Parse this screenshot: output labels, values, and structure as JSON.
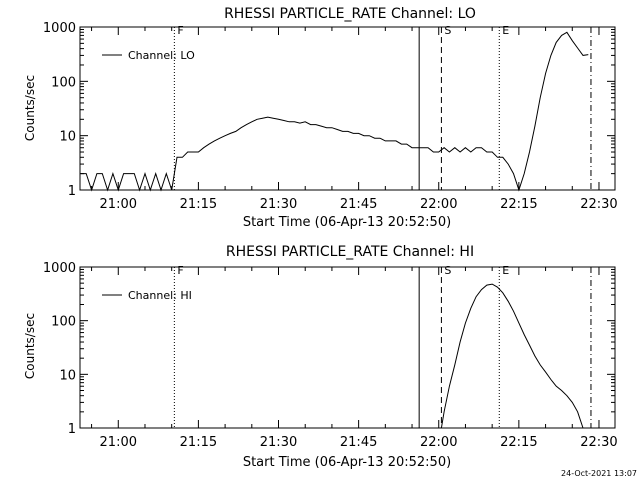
{
  "footer": {
    "timestamp": "24-Oct-2021 13:07"
  },
  "chart_data": [
    {
      "type": "line",
      "title": "RHESSI PARTICLE_RATE Channel: LO",
      "xlabel": "Start Time (06-Apr-13 20:52:50)",
      "ylabel": "Counts/sec",
      "x_unit": "time of day (hh:mm)",
      "xlim": [
        "20:52:50",
        "22:33"
      ],
      "ylim": [
        1,
        1000
      ],
      "yscale": "log",
      "xticks": [
        "21:00",
        "21:15",
        "21:30",
        "21:45",
        "22:00",
        "22:15",
        "22:30"
      ],
      "yticks": [
        "1",
        "10",
        "100",
        "1000"
      ],
      "legend": {
        "position": "top-left",
        "entries": [
          "Channel: LO"
        ]
      },
      "grid": false,
      "markers": [
        {
          "label": "F",
          "time": "21:10:30",
          "style": "dotted"
        },
        {
          "label": "",
          "time": "21:56:20",
          "style": "solid"
        },
        {
          "label": "S",
          "time": "22:00:30",
          "style": "dashed"
        },
        {
          "label": "E",
          "time": "22:11:20",
          "style": "dotted"
        },
        {
          "label": "",
          "time": "22:28:30",
          "style": "dashdot"
        }
      ],
      "series": [
        {
          "name": "Channel: LO",
          "x": [
            "20:53",
            "20:54",
            "20:55",
            "20:56",
            "20:57",
            "20:58",
            "20:59",
            "21:00",
            "21:01",
            "21:02",
            "21:03",
            "21:04",
            "21:05",
            "21:06",
            "21:07",
            "21:08",
            "21:09",
            "21:10",
            "21:11",
            "21:12",
            "21:13",
            "21:14",
            "21:15",
            "21:16",
            "21:17",
            "21:18",
            "21:19",
            "21:20",
            "21:21",
            "21:22",
            "21:23",
            "21:24",
            "21:25",
            "21:26",
            "21:27",
            "21:28",
            "21:29",
            "21:30",
            "21:31",
            "21:32",
            "21:33",
            "21:34",
            "21:35",
            "21:36",
            "21:37",
            "21:38",
            "21:39",
            "21:40",
            "21:41",
            "21:42",
            "21:43",
            "21:44",
            "21:45",
            "21:46",
            "21:47",
            "21:48",
            "21:49",
            "21:50",
            "21:51",
            "21:52",
            "21:53",
            "21:54",
            "21:55",
            "21:56",
            "21:57",
            "21:58",
            "21:59",
            "22:00",
            "22:01",
            "22:02",
            "22:03",
            "22:04",
            "22:05",
            "22:06",
            "22:07",
            "22:08",
            "22:09",
            "22:10",
            "22:11",
            "22:12",
            "22:13",
            "22:14",
            "22:15",
            "22:16",
            "22:17",
            "22:18",
            "22:19",
            "22:20",
            "22:21",
            "22:22",
            "22:23",
            "22:24",
            "22:25",
            "22:26",
            "22:27",
            "22:28"
          ],
          "y": [
            2,
            2,
            1,
            2,
            2,
            1,
            2,
            1,
            2,
            2,
            2,
            1,
            2,
            1,
            2,
            1,
            2,
            1,
            4,
            4,
            5,
            5,
            5,
            6,
            7,
            8,
            9,
            10,
            11,
            12,
            14,
            16,
            18,
            20,
            21,
            22,
            21,
            20,
            19,
            18,
            18,
            17,
            18,
            16,
            16,
            15,
            14,
            14,
            13,
            12,
            12,
            11,
            11,
            10,
            10,
            9,
            9,
            8,
            8,
            8,
            7,
            7,
            6,
            6,
            6,
            6,
            5,
            5,
            6,
            5,
            6,
            5,
            6,
            5,
            6,
            6,
            5,
            5,
            4,
            4,
            3,
            2,
            1,
            2,
            5,
            15,
            50,
            140,
            300,
            520,
            700,
            800,
            560,
            410,
            300,
            310
          ]
        }
      ]
    },
    {
      "type": "line",
      "title": "RHESSI PARTICLE_RATE Channel: HI",
      "xlabel": "Start Time (06-Apr-13 20:52:50)",
      "ylabel": "Counts/sec",
      "x_unit": "time of day (hh:mm)",
      "xlim": [
        "20:52:50",
        "22:33"
      ],
      "ylim": [
        1,
        1000
      ],
      "yscale": "log",
      "xticks": [
        "21:00",
        "21:15",
        "21:30",
        "21:45",
        "22:00",
        "22:15",
        "22:30"
      ],
      "yticks": [
        "1",
        "10",
        "100",
        "1000"
      ],
      "legend": {
        "position": "top-left",
        "entries": [
          "Channel: HI"
        ]
      },
      "grid": false,
      "markers": [
        {
          "label": "F",
          "time": "21:10:30",
          "style": "dotted"
        },
        {
          "label": "",
          "time": "21:56:20",
          "style": "solid"
        },
        {
          "label": "S",
          "time": "22:00:30",
          "style": "dashed"
        },
        {
          "label": "E",
          "time": "22:11:20",
          "style": "dotted"
        },
        {
          "label": "",
          "time": "22:28:30",
          "style": "dashdot"
        }
      ],
      "series": [
        {
          "name": "Channel: HI",
          "x": [
            "22:00:30",
            "22:01",
            "22:02",
            "22:03",
            "22:04",
            "22:05",
            "22:06",
            "22:07",
            "22:08",
            "22:09",
            "22:10",
            "22:11",
            "22:12",
            "22:13",
            "22:14",
            "22:15",
            "22:16",
            "22:17",
            "22:18",
            "22:19",
            "22:20",
            "22:21",
            "22:22",
            "22:23",
            "22:24",
            "22:25",
            "22:26",
            "22:27"
          ],
          "y": [
            1,
            2,
            6,
            15,
            40,
            90,
            170,
            280,
            380,
            460,
            480,
            420,
            330,
            230,
            150,
            90,
            55,
            35,
            22,
            15,
            11,
            8,
            6,
            5,
            4,
            3,
            2,
            1
          ]
        }
      ]
    }
  ]
}
